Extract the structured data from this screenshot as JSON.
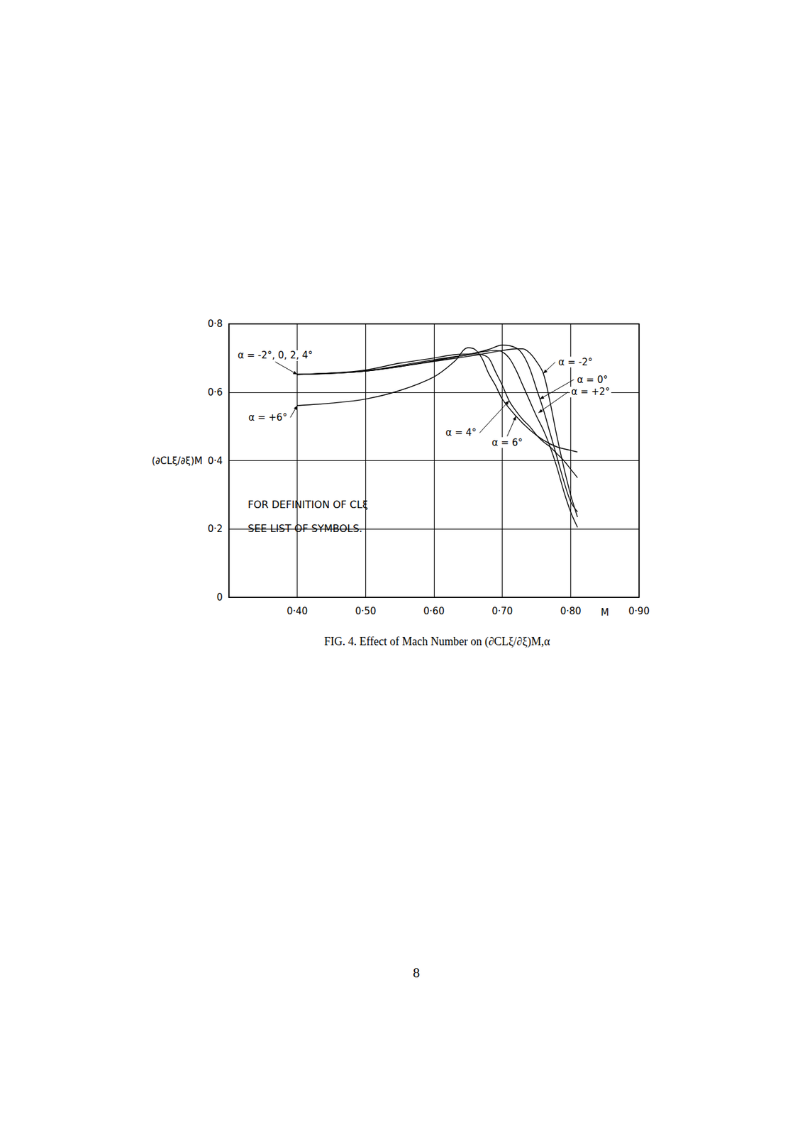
{
  "chart_data": {
    "type": "line",
    "title": "FIG. 4. Effect of Mach Number on (∂CLξ/∂ξ)M,α",
    "x_label": "M",
    "y_label": "(∂CLξ/∂ξ)M",
    "xlim": [
      0.3,
      0.9
    ],
    "xticks": [
      {
        "value": 0.4,
        "label": "0·40"
      },
      {
        "value": 0.5,
        "label": "0·50"
      },
      {
        "value": 0.6,
        "label": "0·60"
      },
      {
        "value": 0.7,
        "label": "0·70"
      },
      {
        "value": 0.8,
        "label": "0·80"
      },
      {
        "value": 0.9,
        "label": "0·90"
      }
    ],
    "ylim": [
      0,
      0.8
    ],
    "yticks": [
      0,
      {
        "value": 0.2,
        "label": "0·2"
      },
      {
        "value": 0.4,
        "label": "0·4"
      },
      {
        "value": 0.6,
        "label": "0·6"
      },
      {
        "value": 0.8,
        "label": "0·8"
      }
    ],
    "grid": true,
    "series": [
      {
        "name": "α = -2°",
        "color": "#000000",
        "line_style": "solid",
        "x": [
          0.4,
          0.45,
          0.5,
          0.55,
          0.6,
          0.65,
          0.68,
          0.7,
          0.72,
          0.73,
          0.74,
          0.75,
          0.76,
          0.77,
          0.78,
          0.79,
          0.8,
          0.81
        ],
        "values": [
          0.652,
          0.655,
          0.662,
          0.675,
          0.69,
          0.705,
          0.715,
          0.722,
          0.727,
          0.727,
          0.715,
          0.69,
          0.655,
          0.57,
          0.47,
          0.38,
          0.3,
          0.235
        ]
      },
      {
        "name": "α = 0°",
        "color": "#000000",
        "line_style": "solid",
        "x": [
          0.4,
          0.45,
          0.5,
          0.55,
          0.6,
          0.65,
          0.68,
          0.7,
          0.72,
          0.73,
          0.74,
          0.75,
          0.76,
          0.77,
          0.78,
          0.79,
          0.8,
          0.81
        ],
        "values": [
          0.652,
          0.655,
          0.662,
          0.675,
          0.692,
          0.71,
          0.725,
          0.738,
          0.73,
          0.71,
          0.67,
          0.61,
          0.55,
          0.48,
          0.41,
          0.34,
          0.28,
          0.25
        ]
      },
      {
        "name": "α = +2°",
        "color": "#000000",
        "line_style": "solid",
        "x": [
          0.4,
          0.45,
          0.5,
          0.55,
          0.6,
          0.65,
          0.67,
          0.69,
          0.7,
          0.71,
          0.72,
          0.73,
          0.74,
          0.75,
          0.76,
          0.77,
          0.78,
          0.79,
          0.8,
          0.81
        ],
        "values": [
          0.652,
          0.656,
          0.662,
          0.678,
          0.695,
          0.71,
          0.718,
          0.722,
          0.718,
          0.7,
          0.665,
          0.62,
          0.575,
          0.53,
          0.49,
          0.44,
          0.38,
          0.31,
          0.25,
          0.205
        ]
      },
      {
        "name": "α = 4°",
        "color": "#000000",
        "line_style": "solid",
        "x": [
          0.4,
          0.45,
          0.5,
          0.55,
          0.6,
          0.63,
          0.66,
          0.67,
          0.68,
          0.69,
          0.7,
          0.71,
          0.72,
          0.73,
          0.74,
          0.75,
          0.76,
          0.77,
          0.78,
          0.79,
          0.8,
          0.81
        ],
        "values": [
          0.652,
          0.656,
          0.665,
          0.685,
          0.7,
          0.71,
          0.712,
          0.71,
          0.7,
          0.66,
          0.62,
          0.575,
          0.545,
          0.52,
          0.5,
          0.475,
          0.455,
          0.44,
          0.42,
          0.4,
          0.375,
          0.35
        ]
      },
      {
        "name": "α = 6°",
        "color": "#000000",
        "line_style": "solid",
        "x": [
          0.4,
          0.45,
          0.5,
          0.55,
          0.6,
          0.63,
          0.65,
          0.66,
          0.67,
          0.68,
          0.69,
          0.7,
          0.72,
          0.74,
          0.76,
          0.78,
          0.8,
          0.81
        ],
        "values": [
          0.561,
          0.568,
          0.58,
          0.605,
          0.645,
          0.69,
          0.73,
          0.725,
          0.7,
          0.655,
          0.62,
          0.58,
          0.53,
          0.49,
          0.46,
          0.44,
          0.43,
          0.425
        ]
      }
    ],
    "annotations": [
      {
        "text": "α = -2°, 0, 2, 4°",
        "x": 0.4,
        "y": 0.652
      },
      {
        "text": "α = +6°",
        "x": 0.4,
        "y": 0.561
      },
      {
        "text": "α = -2°",
        "x": 0.76,
        "y": 0.655
      },
      {
        "text": "α = 0°",
        "x": 0.755,
        "y": 0.58
      },
      {
        "text": "α = +2°",
        "x": 0.753,
        "y": 0.54
      },
      {
        "text": "α = 4°",
        "x": 0.71,
        "y": 0.575
      },
      {
        "text": "α = 6°",
        "x": 0.72,
        "y": 0.53
      }
    ],
    "note": "FOR DEFINITION OF CLξ\nSEE LIST OF SYMBOLS."
  },
  "page_number": "8"
}
